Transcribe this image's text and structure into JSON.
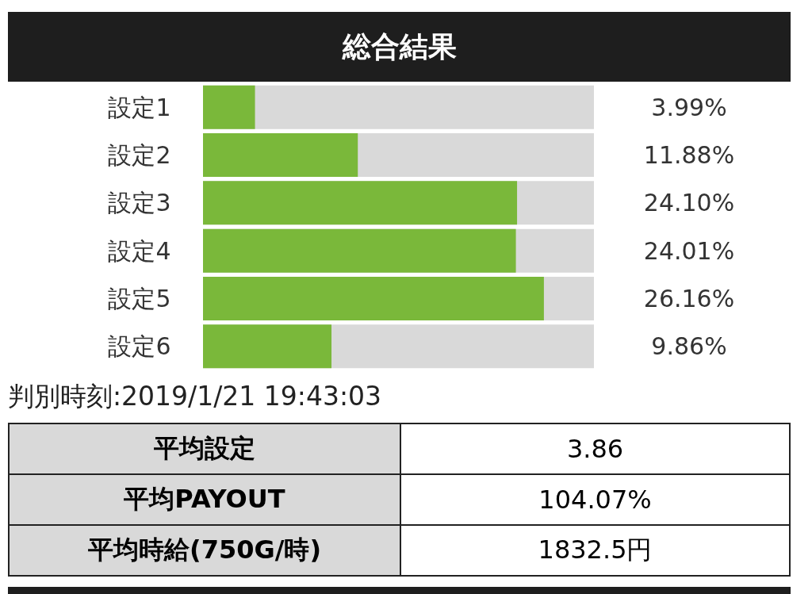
{
  "chart_data": [
    {
      "type": "bar",
      "orientation": "horizontal",
      "title": "総合結果",
      "categories": [
        "設定1",
        "設定2",
        "設定3",
        "設定4",
        "設定5",
        "設定6"
      ],
      "values": [
        3.99,
        11.88,
        24.1,
        24.01,
        26.16,
        9.86
      ],
      "color": "#7ab83a",
      "data_labels": true,
      "value_labels": [
        "3.99%",
        "11.88%",
        "24.10%",
        "24.01%",
        "26.16%",
        "9.86%"
      ],
      "annotations": [
        "判別時刻:2019/1/21 19:43:03"
      ]
    },
    {
      "type": "other",
      "categories": [
        "平均設定",
        "平均PAYOUT",
        "平均時給(750G/時)"
      ],
      "value_labels": [
        "3.86",
        "104.07%",
        "1832.5円"
      ]
    }
  ]
}
